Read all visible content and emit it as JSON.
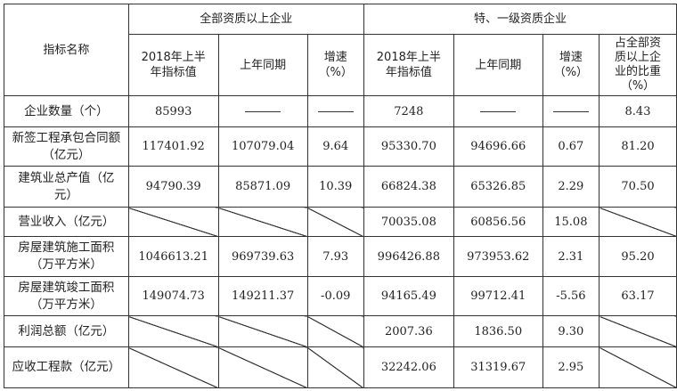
{
  "header": {
    "indicator_name": "指标名称",
    "group_all": "全部资质以上企业",
    "group_special": "特、一级资质企业",
    "col_value": "2018年上半年指标值",
    "col_last_year": "上年同期",
    "col_growth": "增速（%）",
    "col_share": "占全部资质以上企业的比重（%）"
  },
  "dash": "——",
  "rows": [
    {
      "name": "企业数量（个）",
      "all_value": "85993",
      "all_last": "——",
      "all_growth": "——",
      "sp_value": "7248",
      "sp_last": "——",
      "sp_growth": "——",
      "sp_share": "8.43"
    },
    {
      "name": "新签工程承包合同额（亿元）",
      "all_value": "117401.92",
      "all_last": "107079.04",
      "all_growth": "9.64",
      "sp_value": "95330.70",
      "sp_last": "94696.66",
      "sp_growth": "0.67",
      "sp_share": "81.20"
    },
    {
      "name": "建筑业总产值（亿元）",
      "all_value": "94790.39",
      "all_last": "85871.09",
      "all_growth": "10.39",
      "sp_value": "66824.38",
      "sp_last": "65326.85",
      "sp_growth": "2.29",
      "sp_share": "70.50"
    },
    {
      "name": "营业收入（亿元）",
      "all_value": null,
      "all_last": null,
      "all_growth": null,
      "sp_value": "70035.08",
      "sp_last": "60856.56",
      "sp_growth": "15.08",
      "sp_share": null
    },
    {
      "name": "房屋建筑施工面积（万平方米）",
      "all_value": "1046613.21",
      "all_last": "969739.63",
      "all_growth": "7.93",
      "sp_value": "996426.88",
      "sp_last": "973953.62",
      "sp_growth": "2.31",
      "sp_share": "95.20"
    },
    {
      "name": "房屋建筑竣工面积（万平方米）",
      "all_value": "149074.73",
      "all_last": "149211.37",
      "all_growth": "-0.09",
      "sp_value": "94165.49",
      "sp_last": "99712.41",
      "sp_growth": "-5.56",
      "sp_share": "63.17"
    },
    {
      "name": "利润总额（亿元）",
      "all_value": null,
      "all_last": null,
      "all_growth": null,
      "sp_value": "2007.36",
      "sp_last": "1836.50",
      "sp_growth": "9.30",
      "sp_share": null
    },
    {
      "name": "应收工程款（亿元）",
      "all_value": null,
      "all_last": null,
      "all_growth": null,
      "sp_value": "32242.06",
      "sp_last": "31319.67",
      "sp_growth": "2.95",
      "sp_share": null
    }
  ]
}
